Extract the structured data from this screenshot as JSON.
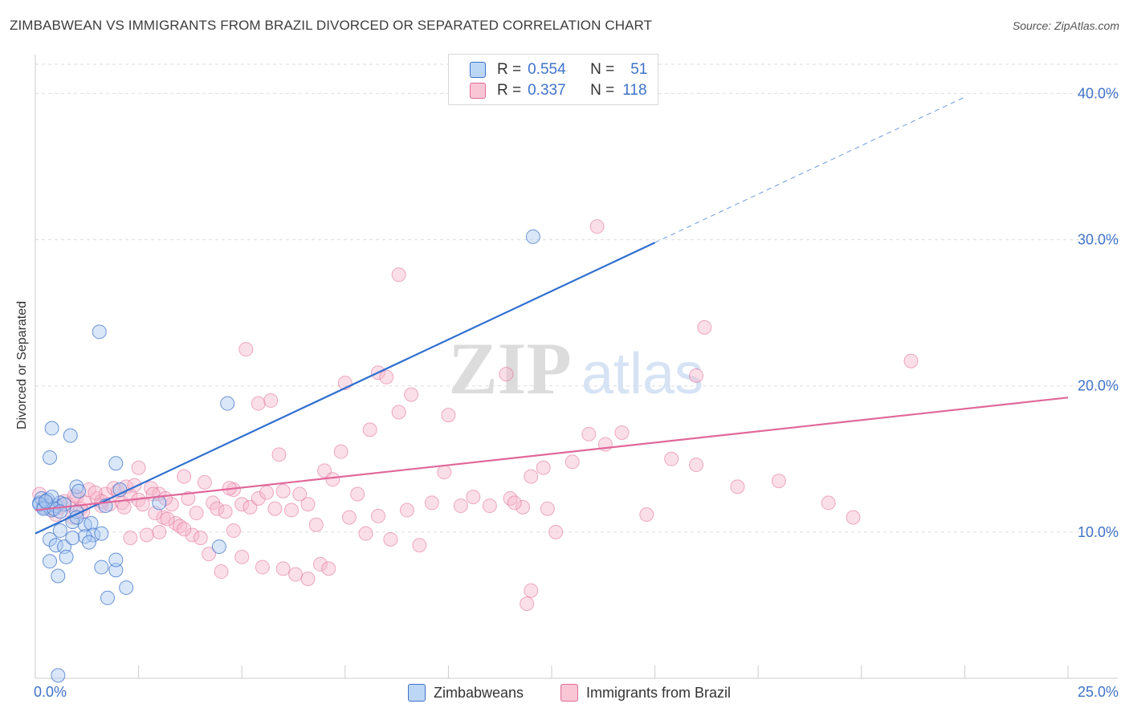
{
  "title": "ZIMBABWEAN VS IMMIGRANTS FROM BRAZIL DIVORCED OR SEPARATED CORRELATION CHART",
  "source": "Source: ZipAtlas.com",
  "colors": {
    "blue": "#3f73c9",
    "blue_fill": "#aac9f2",
    "blue_line": "#2f6fd0",
    "pink": "#e06b97",
    "pink_fill": "#f7b9cd",
    "pink_line": "#e0689a",
    "grid": "#dddddd"
  },
  "legend": {
    "rows": [
      {
        "r_label": "R =",
        "r_value": "0.554",
        "n_label": "N =",
        "n_value": "51"
      },
      {
        "r_label": "R =",
        "r_value": "0.337",
        "n_label": "N =",
        "n_value": "118"
      }
    ]
  },
  "bottom_legend": {
    "series1": "Zimbabweans",
    "series2": "Immigrants from Brazil"
  },
  "x_axis": {
    "min_label": "0.0%",
    "max_label": "25.0%"
  },
  "chart_data": {
    "type": "scatter",
    "title": "ZIMBABWEAN VS IMMIGRANTS FROM BRAZIL DIVORCED OR SEPARATED CORRELATION CHART",
    "xlabel": "",
    "ylabel": "Divorced or Separated",
    "xlim": [
      0,
      25
    ],
    "ylim": [
      0,
      42
    ],
    "y_ticks": [
      {
        "value": 10,
        "label": "10.0%"
      },
      {
        "value": 20,
        "label": "20.0%"
      },
      {
        "value": 30,
        "label": "30.0%"
      },
      {
        "value": 40,
        "label": "40.0%"
      }
    ],
    "series": [
      {
        "name": "Zimbabweans",
        "R": 0.554,
        "N": 51,
        "trend": {
          "x0": 0.0,
          "y0": 9.9,
          "x1": 15.0,
          "y1": 29.8,
          "dash_to_x": 22.5
        },
        "points": [
          [
            0.1,
            12.0
          ],
          [
            0.2,
            11.7
          ],
          [
            0.15,
            12.3
          ],
          [
            0.3,
            11.8
          ],
          [
            0.3,
            12.2
          ],
          [
            0.4,
            11.5
          ],
          [
            0.1,
            11.9
          ],
          [
            0.5,
            11.8
          ],
          [
            0.6,
            12.0
          ],
          [
            0.2,
            11.6
          ],
          [
            0.4,
            17.1
          ],
          [
            0.85,
            16.6
          ],
          [
            0.35,
            15.1
          ],
          [
            1.55,
            23.7
          ],
          [
            0.4,
            12.4
          ],
          [
            0.9,
            10.7
          ],
          [
            0.6,
            10.1
          ],
          [
            1.0,
            11.4
          ],
          [
            1.2,
            10.5
          ],
          [
            1.35,
            10.6
          ],
          [
            1.0,
            11.0
          ],
          [
            1.4,
            9.8
          ],
          [
            1.6,
            9.9
          ],
          [
            1.2,
            9.7
          ],
          [
            0.35,
            9.5
          ],
          [
            0.5,
            9.1
          ],
          [
            0.7,
            9.0
          ],
          [
            0.9,
            9.6
          ],
          [
            1.3,
            9.3
          ],
          [
            0.35,
            8.0
          ],
          [
            0.75,
            8.3
          ],
          [
            0.55,
            7.0
          ],
          [
            1.6,
            7.6
          ],
          [
            1.95,
            7.4
          ],
          [
            1.95,
            8.1
          ],
          [
            2.2,
            6.2
          ],
          [
            1.75,
            5.5
          ],
          [
            1.95,
            14.7
          ],
          [
            1.0,
            13.1
          ],
          [
            1.05,
            12.8
          ],
          [
            2.05,
            12.9
          ],
          [
            1.7,
            11.8
          ],
          [
            3.0,
            12.0
          ],
          [
            4.45,
            9.0
          ],
          [
            4.65,
            18.8
          ],
          [
            12.05,
            30.2
          ],
          [
            0.55,
            0.2
          ],
          [
            0.7,
            11.9
          ],
          [
            0.45,
            11.6
          ],
          [
            0.25,
            12.1
          ],
          [
            0.6,
            11.4
          ]
        ]
      },
      {
        "name": "Immigrants from Brazil",
        "R": 0.337,
        "N": 118,
        "trend": {
          "x0": 0.0,
          "y0": 11.5,
          "x1": 25.0,
          "y1": 19.2
        },
        "points": [
          [
            0.1,
            12.6
          ],
          [
            0.2,
            11.8
          ],
          [
            0.3,
            12.0
          ],
          [
            0.4,
            11.5
          ],
          [
            0.5,
            11.2
          ],
          [
            0.6,
            11.7
          ],
          [
            0.7,
            12.1
          ],
          [
            0.8,
            11.9
          ],
          [
            0.9,
            11.0
          ],
          [
            1.0,
            12.4
          ],
          [
            1.1,
            11.6
          ],
          [
            1.2,
            12.0
          ],
          [
            1.3,
            12.9
          ],
          [
            1.5,
            12.3
          ],
          [
            1.6,
            11.8
          ],
          [
            1.7,
            12.6
          ],
          [
            1.8,
            11.9
          ],
          [
            1.9,
            13.0
          ],
          [
            2.0,
            12.8
          ],
          [
            2.1,
            12.0
          ],
          [
            2.2,
            13.1
          ],
          [
            2.3,
            12.5
          ],
          [
            2.4,
            13.2
          ],
          [
            2.5,
            12.2
          ],
          [
            2.6,
            11.9
          ],
          [
            2.8,
            13.0
          ],
          [
            3.0,
            12.6
          ],
          [
            3.1,
            11.0
          ],
          [
            3.3,
            11.9
          ],
          [
            3.4,
            10.6
          ],
          [
            3.6,
            13.8
          ],
          [
            3.7,
            12.3
          ],
          [
            3.9,
            11.3
          ],
          [
            4.1,
            13.4
          ],
          [
            4.3,
            12.0
          ],
          [
            4.4,
            11.6
          ],
          [
            4.6,
            11.4
          ],
          [
            4.8,
            12.9
          ],
          [
            5.0,
            11.9
          ],
          [
            5.2,
            11.7
          ],
          [
            5.4,
            12.3
          ],
          [
            5.6,
            12.7
          ],
          [
            5.8,
            11.6
          ],
          [
            6.0,
            12.8
          ],
          [
            6.2,
            11.5
          ],
          [
            6.4,
            12.6
          ],
          [
            6.6,
            11.9
          ],
          [
            6.8,
            10.5
          ],
          [
            7.0,
            14.2
          ],
          [
            7.2,
            13.6
          ],
          [
            7.4,
            15.5
          ],
          [
            7.6,
            11.0
          ],
          [
            7.8,
            12.6
          ],
          [
            8.0,
            9.9
          ],
          [
            8.3,
            11.1
          ],
          [
            8.6,
            9.5
          ],
          [
            9.0,
            11.5
          ],
          [
            9.3,
            9.1
          ],
          [
            9.6,
            12.0
          ],
          [
            9.9,
            14.1
          ],
          [
            10.0,
            18.0
          ],
          [
            10.3,
            11.8
          ],
          [
            10.6,
            12.4
          ],
          [
            11.0,
            11.8
          ],
          [
            11.5,
            12.3
          ],
          [
            11.8,
            11.7
          ],
          [
            12.0,
            13.8
          ],
          [
            12.3,
            14.4
          ],
          [
            12.6,
            10.0
          ],
          [
            13.0,
            14.8
          ],
          [
            13.4,
            16.7
          ],
          [
            13.8,
            16.0
          ],
          [
            14.2,
            16.8
          ],
          [
            14.8,
            11.2
          ],
          [
            15.4,
            15.0
          ],
          [
            16.0,
            14.6
          ],
          [
            17.0,
            13.1
          ],
          [
            18.0,
            13.5
          ],
          [
            19.2,
            12.0
          ],
          [
            19.8,
            11.0
          ],
          [
            2.5,
            14.4
          ],
          [
            2.9,
            11.3
          ],
          [
            3.2,
            10.9
          ],
          [
            3.5,
            10.4
          ],
          [
            3.8,
            9.8
          ],
          [
            4.2,
            8.5
          ],
          [
            4.5,
            7.3
          ],
          [
            5.0,
            8.3
          ],
          [
            5.5,
            7.6
          ],
          [
            6.0,
            7.5
          ],
          [
            6.3,
            7.1
          ],
          [
            6.6,
            6.8
          ],
          [
            6.9,
            7.8
          ],
          [
            7.1,
            7.5
          ],
          [
            2.3,
            9.6
          ],
          [
            2.7,
            9.8
          ],
          [
            3.0,
            10.0
          ],
          [
            3.6,
            10.2
          ],
          [
            4.0,
            9.6
          ],
          [
            4.8,
            10.1
          ],
          [
            5.1,
            22.5
          ],
          [
            5.4,
            18.8
          ],
          [
            5.7,
            19.0
          ],
          [
            5.9,
            15.3
          ],
          [
            7.5,
            20.2
          ],
          [
            8.1,
            17.0
          ],
          [
            8.3,
            20.9
          ],
          [
            8.5,
            20.6
          ],
          [
            8.8,
            18.2
          ],
          [
            9.1,
            19.4
          ],
          [
            8.8,
            27.6
          ],
          [
            11.4,
            20.8
          ],
          [
            12.0,
            6.0
          ],
          [
            11.9,
            5.1
          ],
          [
            13.6,
            30.9
          ],
          [
            16.2,
            24.0
          ],
          [
            16.0,
            20.7
          ],
          [
            21.2,
            21.7
          ],
          [
            11.6,
            12.0
          ],
          [
            12.4,
            11.6
          ],
          [
            1.6,
            12.1
          ],
          [
            0.95,
            12.5
          ],
          [
            1.15,
            11.4
          ],
          [
            1.45,
            12.7
          ],
          [
            2.15,
            11.7
          ],
          [
            2.85,
            12.6
          ],
          [
            3.15,
            12.3
          ],
          [
            4.7,
            13.0
          ]
        ]
      }
    ],
    "watermark": "ZIPatlas"
  }
}
